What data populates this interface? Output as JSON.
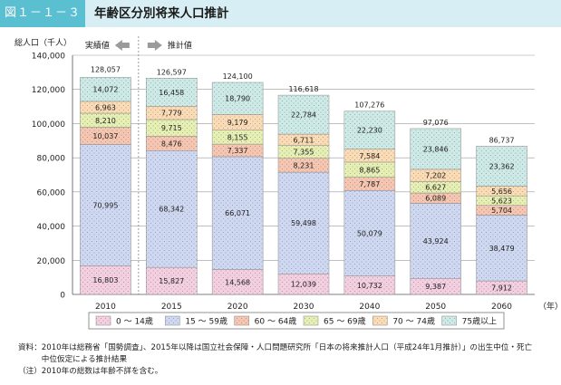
{
  "figure": {
    "label": "図１－１－３",
    "title": "年齢区分別将来人口推計"
  },
  "chart_data": {
    "type": "bar",
    "stacked": true,
    "categories": [
      "2010",
      "2015",
      "2020",
      "2030",
      "2040",
      "2050",
      "2060"
    ],
    "x_unit": "（年）",
    "ylabel": "総人口（千人）",
    "ylim": [
      0,
      140000
    ],
    "yticks": [
      "0",
      "20,000",
      "40,000",
      "60,000",
      "80,000",
      "100,000",
      "120,000",
      "140,000"
    ],
    "totals": [
      128057,
      126597,
      124100,
      116618,
      107276,
      97076,
      86737
    ],
    "total_labels": [
      "128,057",
      "126,597",
      "124,100",
      "116,618",
      "107,276",
      "97,076",
      "86,737"
    ],
    "series": [
      {
        "name": "0 〜 14歳",
        "color": "#f4cfe0",
        "values": [
          16803,
          15827,
          14568,
          12039,
          10732,
          9387,
          7912
        ],
        "labels": [
          "16,803",
          "15,827",
          "14,568",
          "12,039",
          "10,732",
          "9,387",
          "7,912"
        ]
      },
      {
        "name": "15 〜 59歳",
        "color": "#cfd8f1",
        "values": [
          70995,
          68342,
          66071,
          59498,
          50079,
          43924,
          38479
        ],
        "labels": [
          "70,995",
          "68,342",
          "66,071",
          "59,498",
          "50,079",
          "43,924",
          "38,479"
        ]
      },
      {
        "name": "60 〜 64歳",
        "color": "#f6c6b0",
        "values": [
          10037,
          8476,
          7337,
          8231,
          7787,
          6089,
          5704
        ],
        "labels": [
          "10,037",
          "8,476",
          "7,337",
          "8,231",
          "7,787",
          "6,089",
          "5,704"
        ]
      },
      {
        "name": "65 〜 69歳",
        "color": "#e6f0b3",
        "values": [
          8210,
          9715,
          8155,
          7355,
          8865,
          6627,
          5623
        ],
        "labels": [
          "8,210",
          "9,715",
          "8,155",
          "7,355",
          "8,865",
          "6,627",
          "5,623"
        ]
      },
      {
        "name": "70 〜 74歳",
        "color": "#fbdcb4",
        "values": [
          6963,
          7779,
          9179,
          6711,
          7584,
          7202,
          5656
        ],
        "labels": [
          "6,963",
          "7,779",
          "9,179",
          "6,711",
          "7,584",
          "7,202",
          "5,656"
        ]
      },
      {
        "name": "75歳以上",
        "color": "#cdeae6",
        "values": [
          14072,
          16458,
          18790,
          22784,
          22230,
          23846,
          23362
        ],
        "labels": [
          "14,072",
          "16,458",
          "18,790",
          "22,784",
          "22,230",
          "23,846",
          "23,362"
        ]
      }
    ],
    "grid": "horizontal",
    "legend_position": "bottom",
    "annotations": {
      "actual": "実績値",
      "projected": "推計値"
    }
  },
  "notes": [
    "資料：2010年は総務省「国勢調査」、2015年以降は国立社会保障・人口問題研究所「日本の将来推計人口（平成24年1月推計）」の出生中位・死亡",
    "　　　中位仮定による推計結果",
    "（注）2010年の総数は年齢不詳を含む。"
  ]
}
